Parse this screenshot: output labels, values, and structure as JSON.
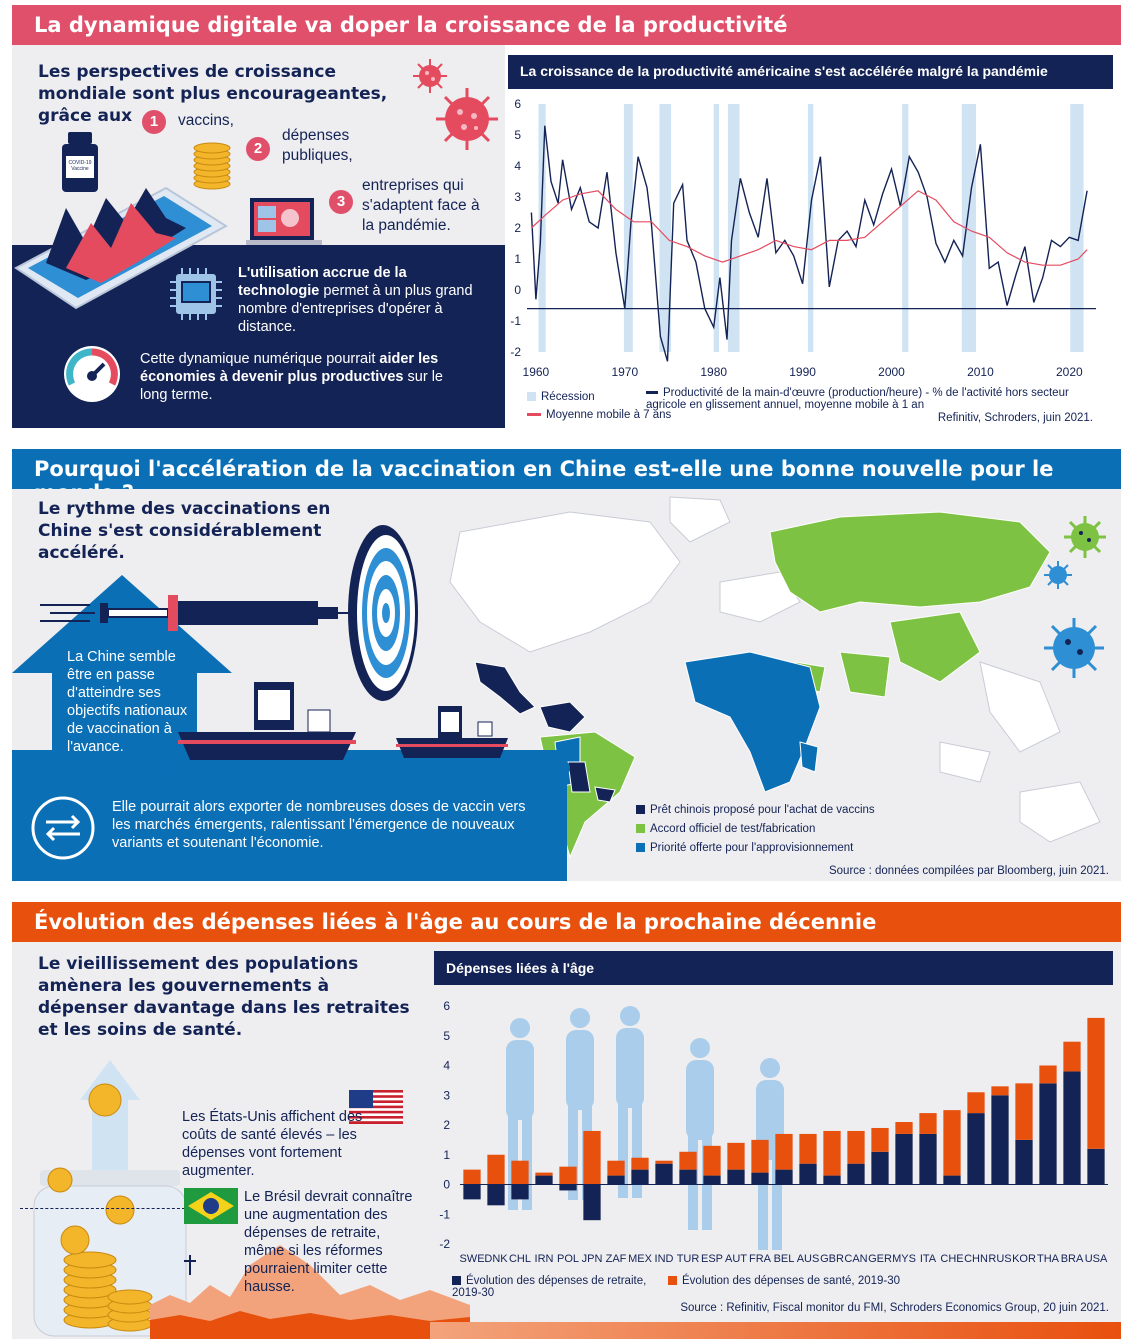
{
  "colors": {
    "pink": "#e0506b",
    "navy": "#142355",
    "blue": "#0b6fb6",
    "orange": "#e8500e",
    "recession": "#cfe3f2",
    "green": "#7dc242",
    "red": "#e54b5f"
  },
  "section1": {
    "banner": "La dynamique digitale va doper la croissance de la productivité",
    "headline": "Les perspectives de croissance mondiale sont plus encourageantes, grâce aux",
    "items": [
      {
        "num": "1",
        "text": "vaccins,"
      },
      {
        "num": "2",
        "text": "dépenses publiques,"
      },
      {
        "num": "3",
        "text": "entreprises qui s'adaptent face à la pandémie."
      }
    ],
    "tech_bold": "L'utilisation accrue de la technologie",
    "tech_text": " permet à un plus grand nombre d'entreprises d'opérer à distance.",
    "digital_text": "Cette dynamique numérique pourrait ",
    "digital_bold": "aider les économies à devenir plus productives",
    "digital_end": " sur le long terme.",
    "vial_label": "COVID-19 Vaccine"
  },
  "section2": {
    "banner": "Pourquoi l'accélération de la vaccination en Chine est-elle une bonne nouvelle pour le monde ?",
    "headline": "Le rythme des vaccinations en Chine s'est considérablement accéléré.",
    "arrow_text": "La Chine semble être en passe d'atteindre ses objectifs nationaux de vaccination à l'avance.",
    "export_text": "Elle pourrait alors exporter de nombreuses doses de vaccin vers les marchés émergents, ralentissant l'émergence de nouveaux variants et soutenant l'économie.",
    "legend": [
      {
        "label": "Prêt chinois proposé pour l'achat de vaccins",
        "color": "#142355"
      },
      {
        "label": "Accord officiel de test/fabrication",
        "color": "#7dc242"
      },
      {
        "label": "Priorité offerte pour l'approvisionnement",
        "color": "#0b6fb6"
      }
    ],
    "source": "Source : données compilées par Bloomberg, juin 2021."
  },
  "section3": {
    "banner": "Évolution des dépenses liées à l'âge au cours de la prochaine décennie",
    "headline": "Le vieillissement des populations amènera les gouvernements à dépenser davantage dans les retraites et les soins de santé.",
    "usa_text": "Les États-Unis affichent des coûts de santé élevés – les dépenses vont fortement augmenter.",
    "brazil_text": "Le Brésil devrait connaître une augmentation des dépenses de retraite, même si les réformes pourraient limiter cette hausse."
  },
  "chart_data": [
    {
      "type": "line",
      "title": "La croissance de la productivité américaine s'est accélérée malgré la pandémie",
      "ylim": [
        -2,
        6
      ],
      "yticks": [
        6,
        5,
        4,
        3,
        2,
        1,
        0,
        -1,
        -2
      ],
      "xticks": [
        1960,
        1970,
        1980,
        1990,
        2000,
        2010,
        2020
      ],
      "xlim": [
        1959,
        2023
      ],
      "recessions": [
        [
          1960.3,
          1961.1
        ],
        [
          1969.9,
          1970.9
        ],
        [
          1973.9,
          1975.2
        ],
        [
          1980.0,
          1980.6
        ],
        [
          1981.6,
          1982.9
        ],
        [
          1990.6,
          1991.2
        ],
        [
          2001.2,
          2001.9
        ],
        [
          2007.9,
          2009.5
        ],
        [
          2020.1,
          2021.6
        ]
      ],
      "series": [
        {
          "name": "Productivité de la main-d'œuvre (production/heure) - % de l'activité hors secteur agricole en glissement annuel, moyenne mobile à 1 an",
          "x": [
            1959.5,
            1960,
            1960.5,
            1961,
            1961.7,
            1962.5,
            1963,
            1964,
            1965,
            1966,
            1967,
            1968,
            1969,
            1970,
            1970.7,
            1971.5,
            1972.5,
            1973,
            1974,
            1974.8,
            1975.5,
            1976.5,
            1977,
            1978,
            1979,
            1980,
            1980.7,
            1981.5,
            1982,
            1983,
            1984,
            1985,
            1986,
            1987,
            1988,
            1989,
            1990,
            1991,
            1992,
            1993,
            1994,
            1995,
            1996,
            1997,
            1998,
            1999,
            2000,
            2001,
            2002,
            2003,
            2004,
            2005,
            2006,
            2007,
            2008,
            2009,
            2010,
            2011,
            2012,
            2013,
            2014,
            2015,
            2016,
            2017,
            2018,
            2019,
            2020,
            2021,
            2022
          ],
          "y": [
            2.5,
            -0.3,
            1.5,
            5.3,
            3.5,
            2.8,
            4.2,
            2.6,
            3.3,
            2.2,
            2.0,
            3.8,
            1.2,
            -0.6,
            2.2,
            4.3,
            3.3,
            2.1,
            -1.5,
            -2.3,
            2.8,
            3.4,
            1.6,
            0.9,
            -0.6,
            -1.2,
            0.4,
            -1.6,
            1.6,
            3.6,
            2.5,
            1.7,
            3.6,
            1.2,
            1.6,
            1.1,
            0.2,
            2.9,
            4.3,
            0.1,
            1.6,
            1.9,
            1.4,
            2.9,
            2.1,
            3.1,
            3.9,
            2.7,
            4.3,
            3.8,
            3.0,
            1.5,
            0.9,
            1.6,
            1.1,
            3.3,
            4.7,
            0.7,
            0.9,
            -0.5,
            0.5,
            1.4,
            -0.4,
            0.4,
            1.6,
            1.4,
            1.7,
            1.6,
            3.2
          ],
          "color": "#142355"
        },
        {
          "name": "Moyenne mobile à 7 ans",
          "x": [
            1959.5,
            1961,
            1963,
            1965,
            1967,
            1969,
            1971,
            1973,
            1975,
            1977,
            1979,
            1981,
            1983,
            1985,
            1987,
            1989,
            1991,
            1993,
            1995,
            1997,
            1999,
            2001,
            2003,
            2005,
            2007,
            2009,
            2011,
            2013,
            2015,
            2017,
            2019,
            2021,
            2022
          ],
          "y": [
            2.0,
            2.4,
            2.9,
            3.1,
            3.2,
            2.6,
            2.2,
            2.2,
            1.6,
            1.4,
            1.1,
            0.9,
            1.1,
            1.3,
            1.6,
            1.4,
            1.3,
            1.6,
            1.6,
            1.7,
            2.2,
            2.7,
            3.2,
            2.9,
            2.2,
            1.9,
            1.7,
            1.2,
            0.9,
            0.8,
            0.8,
            1.0,
            1.3
          ],
          "color": "#e54b5f"
        }
      ],
      "legend": [
        "Récession",
        "Productivité de la main-d'œuvre (production/heure) - % de l'activité hors secteur agricole en glissement annuel, moyenne mobile à 1 an",
        "Moyenne mobile à 7 ans"
      ],
      "source": "Refinitiv, Schroders, juin 2021."
    },
    {
      "type": "bar",
      "title": "Dépenses liées à l'âge",
      "ylim": [
        -2,
        6
      ],
      "yticks": [
        6,
        5,
        4,
        3,
        2,
        1,
        0,
        -1,
        -2
      ],
      "categories": [
        "SWE",
        "DNK",
        "CHL",
        "IRN",
        "POL",
        "JPN",
        "ZAF",
        "MEX",
        "IND",
        "TUR",
        "ESP",
        "AUT",
        "FRA",
        "BEL",
        "AUS",
        "GBR",
        "CAN",
        "GER",
        "MYS",
        "ITA",
        "CHE",
        "CHN",
        "RUS",
        "KOR",
        "THA",
        "BRA",
        "USA"
      ],
      "series": [
        {
          "name": "Évolution des dépenses de retraite, 2019-30",
          "color": "#142355",
          "values": [
            -0.5,
            -0.7,
            -0.5,
            0.3,
            -0.2,
            -1.2,
            0.3,
            0.5,
            0.7,
            0.5,
            0.3,
            0.5,
            0.4,
            0.5,
            0.7,
            0.3,
            0.7,
            1.1,
            1.7,
            1.7,
            0.3,
            2.4,
            3.0,
            1.5,
            3.4,
            3.8,
            1.2
          ]
        },
        {
          "name": "Évolution des dépenses de santé, 2019-30",
          "color": "#e8500e",
          "values": [
            0.5,
            1.0,
            0.8,
            0.1,
            0.6,
            1.8,
            0.5,
            0.4,
            0.1,
            0.6,
            1.0,
            0.9,
            1.1,
            1.2,
            1.0,
            1.5,
            1.1,
            0.8,
            0.4,
            0.7,
            2.2,
            0.7,
            0.3,
            1.9,
            0.6,
            1.0,
            4.4
          ]
        }
      ],
      "source": "Source : Refinitiv, Fiscal monitor du FMI, Schroders Economics Group, 20 juin 2021."
    }
  ]
}
